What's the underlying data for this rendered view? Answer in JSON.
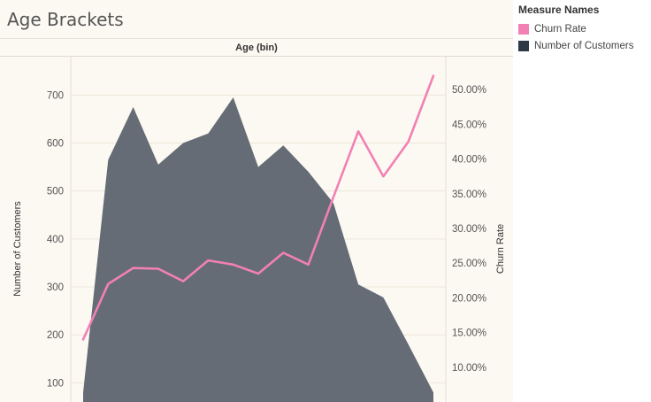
{
  "chart_data": {
    "type": "area+line",
    "title": "Age Brackets",
    "xlabel": "Age (bin)",
    "ylabel_left": "Number of Customers",
    "ylabel_right": "Churn Rate",
    "ylim_left": [
      60,
      780
    ],
    "ylim_right": [
      0.05,
      0.5475
    ],
    "left_ticks": [
      100,
      200,
      300,
      400,
      500,
      600,
      700
    ],
    "right_ticks": [
      "10.00%",
      "15.00%",
      "20.00%",
      "25.00%",
      "30.00%",
      "35.00%",
      "40.00%",
      "45.00%",
      "50.00%"
    ],
    "right_tick_values": [
      0.1,
      0.15,
      0.2,
      0.25,
      0.3,
      0.35,
      0.4,
      0.45,
      0.5
    ],
    "legend_title": "Measure Names",
    "legend_position": "right",
    "grid": true,
    "series": [
      {
        "name": "Number of Customers",
        "type": "area",
        "color": "#656c75",
        "values": [
          80,
          565,
          675,
          555,
          600,
          620,
          695,
          550,
          595,
          540,
          475,
          305,
          278,
          180,
          80
        ]
      },
      {
        "name": "Churn Rate",
        "type": "line",
        "color": "#f280b4",
        "values": [
          0.14,
          0.22,
          0.243,
          0.242,
          0.224,
          0.254,
          0.248,
          0.235,
          0.265,
          0.248,
          0.345,
          0.44,
          0.375,
          0.425,
          0.52
        ]
      }
    ]
  }
}
